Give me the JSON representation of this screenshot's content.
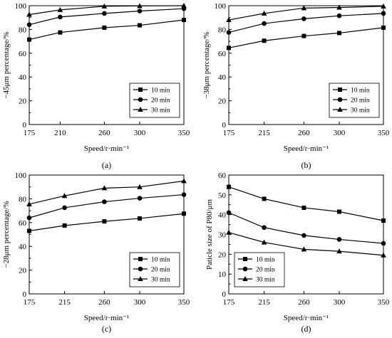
{
  "chart_data": [
    {
      "type": "line",
      "panel_label": "(a)",
      "x": [
        175,
        210,
        260,
        300,
        350
      ],
      "xtick_labels": [
        "175",
        "210",
        "260",
        "300",
        "350"
      ],
      "xlabel": "Speed/r·min⁻¹",
      "ylabel": "−45μm percentage/%",
      "ylim": [
        0,
        100
      ],
      "yticks": [
        0,
        20,
        40,
        60,
        80,
        100
      ],
      "legend_position": "bottom-right",
      "series": [
        {
          "name": "10 min",
          "marker": "square",
          "values": [
            71.5,
            77.5,
            81.5,
            83.5,
            88
          ]
        },
        {
          "name": "20 min",
          "marker": "circle",
          "values": [
            84,
            90.5,
            93.5,
            95.5,
            97.5
          ]
        },
        {
          "name": "30 min",
          "marker": "triangle",
          "values": [
            92.5,
            96.5,
            99.5,
            99.8,
            100
          ]
        }
      ]
    },
    {
      "type": "line",
      "panel_label": "(b)",
      "x": [
        175,
        215,
        260,
        300,
        350
      ],
      "xtick_labels": [
        "175",
        "215",
        "260",
        "300",
        "350"
      ],
      "xlabel": "Speed/r·min⁻¹",
      "ylabel": "−38μm percentage/%",
      "ylim": [
        0,
        100
      ],
      "yticks": [
        0,
        20,
        40,
        60,
        80,
        100
      ],
      "legend_position": "bottom-right",
      "series": [
        {
          "name": "10 min",
          "marker": "square",
          "values": [
            64.5,
            70.5,
            74.5,
            77,
            81.5
          ]
        },
        {
          "name": "20 min",
          "marker": "circle",
          "values": [
            77.5,
            85,
            89,
            91.5,
            93.5
          ]
        },
        {
          "name": "30 min",
          "marker": "triangle",
          "values": [
            88,
            93.5,
            98,
            98.5,
            99.5
          ]
        }
      ]
    },
    {
      "type": "line",
      "panel_label": "(c)",
      "x": [
        175,
        215,
        260,
        300,
        350
      ],
      "xtick_labels": [
        "175",
        "215",
        "260",
        "300",
        "350"
      ],
      "xlabel": "Speed/r·min⁻¹",
      "ylabel": "−28μm percentage/%",
      "ylim": [
        0,
        100
      ],
      "yticks": [
        0,
        20,
        40,
        60,
        80,
        100
      ],
      "legend_position": "bottom-right",
      "series": [
        {
          "name": "10 min",
          "marker": "square",
          "values": [
            53,
            57.5,
            61,
            63.5,
            67.5
          ]
        },
        {
          "name": "20 min",
          "marker": "circle",
          "values": [
            64,
            72.5,
            77.5,
            80.5,
            83.5
          ]
        },
        {
          "name": "30 min",
          "marker": "triangle",
          "values": [
            75.5,
            82.5,
            89,
            90,
            95
          ]
        }
      ]
    },
    {
      "type": "line",
      "panel_label": "(d)",
      "x": [
        175,
        215,
        260,
        300,
        350
      ],
      "xtick_labels": [
        "175",
        "215",
        "260",
        "300",
        "350"
      ],
      "xlabel": "Speed/r·min⁻¹",
      "ylabel": "Paticle size of P80/μm",
      "ylim": [
        0,
        60
      ],
      "yticks": [
        0,
        10,
        20,
        30,
        40,
        50,
        60
      ],
      "legend_position": "bottom-left",
      "series": [
        {
          "name": "10 min",
          "marker": "square",
          "values": [
            54,
            48,
            43.5,
            41.5,
            37
          ]
        },
        {
          "name": "20 min",
          "marker": "circle",
          "values": [
            41,
            33.5,
            29.5,
            27.5,
            25.5
          ]
        },
        {
          "name": "30 min",
          "marker": "triangle",
          "values": [
            31,
            26,
            22.5,
            21.5,
            19.5
          ]
        }
      ]
    }
  ]
}
